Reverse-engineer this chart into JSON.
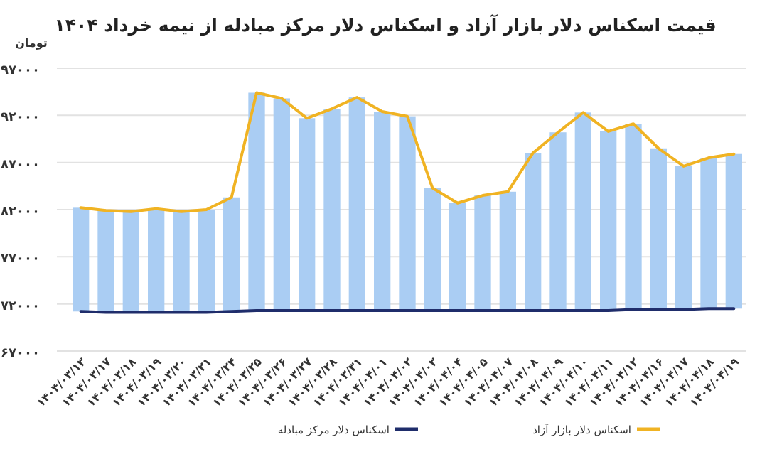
{
  "chart_data": {
    "type": "bar",
    "title": "قیمت اسکناس دلار بازار آزاد و اسکناس دلار مرکز مبادله از نیمه خرداد ۱۴۰۴",
    "ylabel": "تومان",
    "categories": [
      "۱۴۰۴/۰۳/۱۳",
      "۱۴۰۴/۰۳/۱۷",
      "۱۴۰۴/۰۳/۱۸",
      "۱۴۰۴/۰۳/۱۹",
      "۱۴۰۴/۰۳/۲۰",
      "۱۴۰۴/۰۳/۲۱",
      "۱۴۰۴/۰۳/۲۴",
      "۱۴۰۴/۰۳/۲۵",
      "۱۴۰۴/۰۳/۲۶",
      "۱۴۰۴/۰۳/۲۷",
      "۱۴۰۴/۰۳/۲۸",
      "۱۴۰۴/۰۳/۳۱",
      "۱۴۰۴/۰۴/۰۱",
      "۱۴۰۴/۰۴/۰۲",
      "۱۴۰۴/۰۴/۰۳",
      "۱۴۰۴/۰۴/۰۴",
      "۱۴۰۴/۰۴/۰۵",
      "۱۴۰۴/۰۴/۰۷",
      "۱۴۰۴/۰۴/۰۸",
      "۱۴۰۴/۰۴/۰۹",
      "۱۴۰۴/۰۴/۱۰",
      "۱۴۰۴/۰۴/۱۱",
      "۱۴۰۴/۰۴/۱۲",
      "۱۴۰۴/۰۴/۱۶",
      "۱۴۰۴/۰۴/۱۷",
      "۱۴۰۴/۰۴/۱۸",
      "۱۴۰۴/۰۴/۱۹"
    ],
    "ylim": [
      67000,
      97000
    ],
    "yticks": [
      {
        "value": 67000,
        "label": "۶۷۰۰۰"
      },
      {
        "value": 72000,
        "label": "۷۲۰۰۰"
      },
      {
        "value": 77000,
        "label": "۷۷۰۰۰"
      },
      {
        "value": 82000,
        "label": "۸۲۰۰۰"
      },
      {
        "value": 87000,
        "label": "۸۷۰۰۰"
      },
      {
        "value": 92000,
        "label": "۹۲۰۰۰"
      },
      {
        "value": 97000,
        "label": "۹۷۰۰۰"
      }
    ],
    "grid": "y",
    "legend": "bottom",
    "series": [
      {
        "color": "#aacdf3",
        "values": [
          11000,
          10800,
          10700,
          11000,
          10700,
          10900,
          12100,
          23100,
          22500,
          20400,
          21400,
          22600,
          21100,
          20600,
          13000,
          11400,
          12200,
          12600,
          16700,
          18900,
          21000,
          19000,
          19700,
          17100,
          15200,
          16000,
          16400
        ],
        "base": [
          71200,
          71100,
          71100,
          71100,
          71100,
          71100,
          71200,
          71300,
          71300,
          71300,
          71300,
          71300,
          71300,
          71300,
          71300,
          71300,
          71300,
          71300,
          71300,
          71300,
          71300,
          71300,
          71400,
          71400,
          71400,
          71500,
          71500
        ]
      },
      {
        "type": "line",
        "name": "اسکناس دلار مرکز مبادله",
        "color": "#1f2d6b",
        "values": [
          71200,
          71100,
          71100,
          71100,
          71100,
          71100,
          71200,
          71300,
          71300,
          71300,
          71300,
          71300,
          71300,
          71300,
          71300,
          71300,
          71300,
          71300,
          71300,
          71300,
          71300,
          71300,
          71400,
          71400,
          71400,
          71500,
          71500
        ]
      },
      {
        "type": "line",
        "name": "اسکناس دلار بازار آزاد",
        "color": "#f0b323",
        "values": [
          82200,
          81900,
          81800,
          82100,
          81800,
          82000,
          83300,
          94400,
          93800,
          91700,
          92700,
          93900,
          92400,
          91900,
          84300,
          82700,
          83500,
          83900,
          88000,
          90200,
          92300,
          90300,
          91100,
          88500,
          86600,
          87500,
          87900
        ]
      }
    ]
  }
}
